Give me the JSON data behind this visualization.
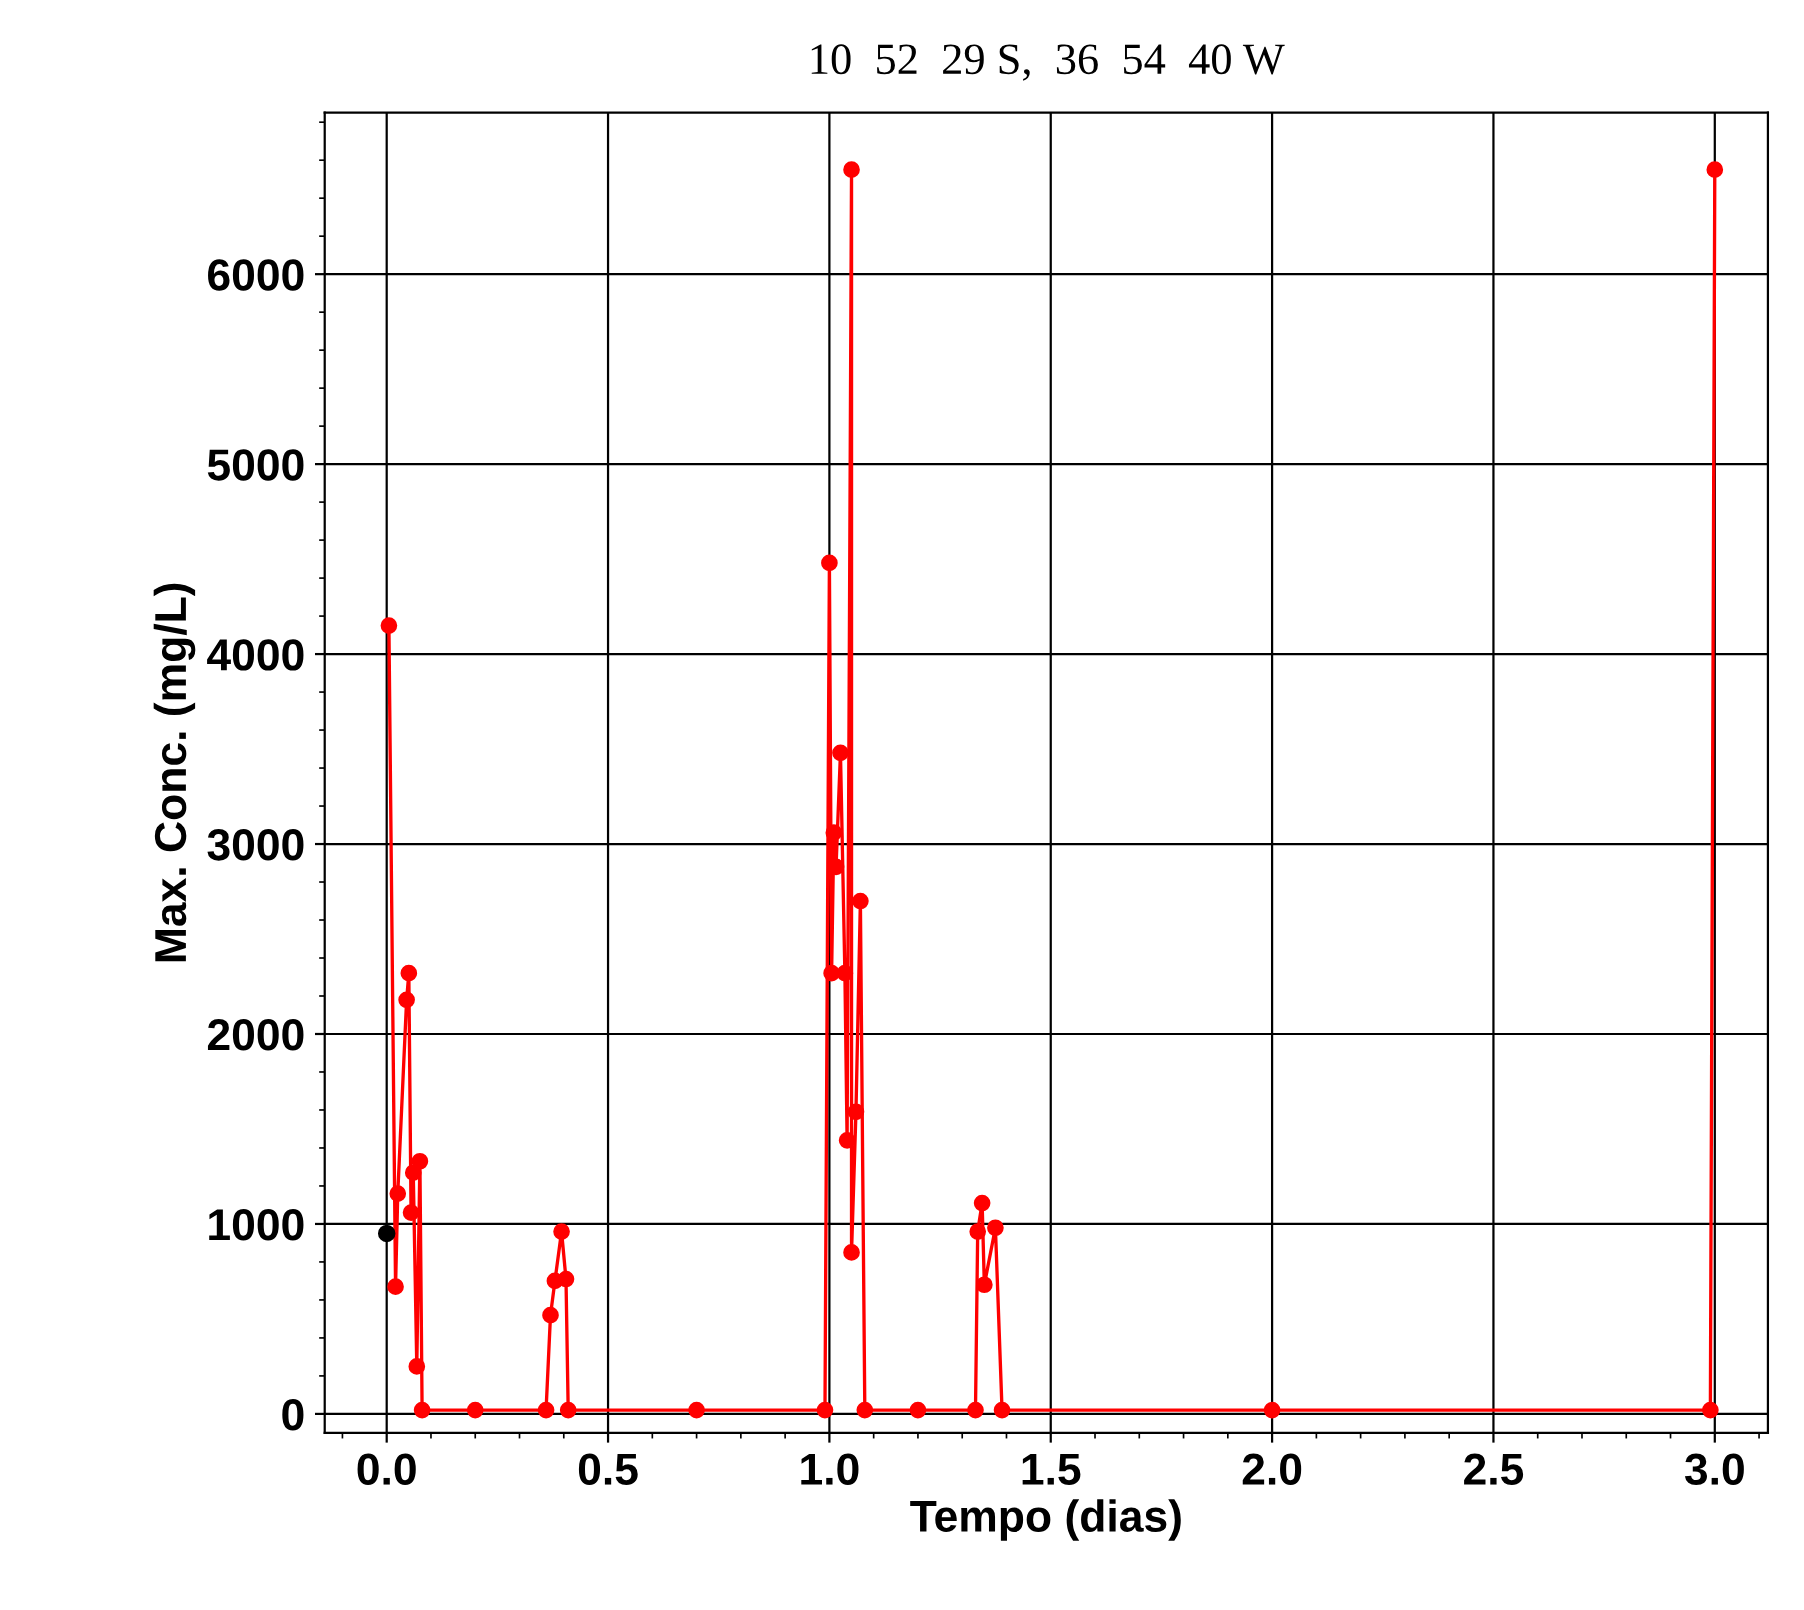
{
  "chart_data": {
    "type": "line",
    "title": "10  52  29 S,  36  54  40 W",
    "xlabel": "Tempo (dias)",
    "ylabel": "Max. Conc. (mg/L)",
    "xlim": [
      -0.14,
      3.12
    ],
    "xticks": [
      {
        "value": 0,
        "label": "0.0"
      },
      {
        "value": 0.5,
        "label": "0.5"
      },
      {
        "value": 1,
        "label": "1.0"
      },
      {
        "value": 1.5,
        "label": "1.5"
      },
      {
        "value": 2,
        "label": "2.0"
      },
      {
        "value": 2.5,
        "label": "2.5"
      },
      {
        "value": 3,
        "label": "3.0"
      }
    ],
    "ylim": [
      -100,
      6850
    ],
    "yticks": [
      0,
      1000,
      2000,
      3000,
      4000,
      5000,
      6000
    ],
    "grid": true,
    "marker": "circle",
    "line_style": "solid",
    "series": [
      {
        "color": "#ff0000",
        "x": [
          0.005,
          0.02,
          0.025,
          0.045,
          0.05,
          0.055,
          0.06,
          0.068,
          0.075,
          0.08,
          0.2,
          0.36,
          0.37,
          0.38,
          0.395,
          0.405,
          0.41,
          0.7,
          0.99,
          1.0,
          1.005,
          1.01,
          1.015,
          1.025,
          1.035,
          1.04,
          1.05,
          1.05,
          1.06,
          1.07,
          1.08,
          1.2,
          1.33,
          1.335,
          1.345,
          1.35,
          1.375,
          1.39,
          2.0,
          2.99,
          3.0
        ],
        "values": [
          4150,
          670,
          1160,
          2180,
          2320,
          1060,
          1270,
          250,
          1330,
          20,
          20,
          20,
          520,
          700,
          960,
          710,
          20,
          20,
          20,
          4480,
          2320,
          3060,
          2880,
          3480,
          2320,
          1440,
          6550,
          850,
          1590,
          2700,
          20,
          20,
          20,
          960,
          1110,
          680,
          980,
          20,
          20,
          20,
          6550
        ]
      },
      {
        "type": "scatter",
        "color": "#000000",
        "x": [
          0.0
        ],
        "values": [
          950
        ]
      }
    ]
  }
}
